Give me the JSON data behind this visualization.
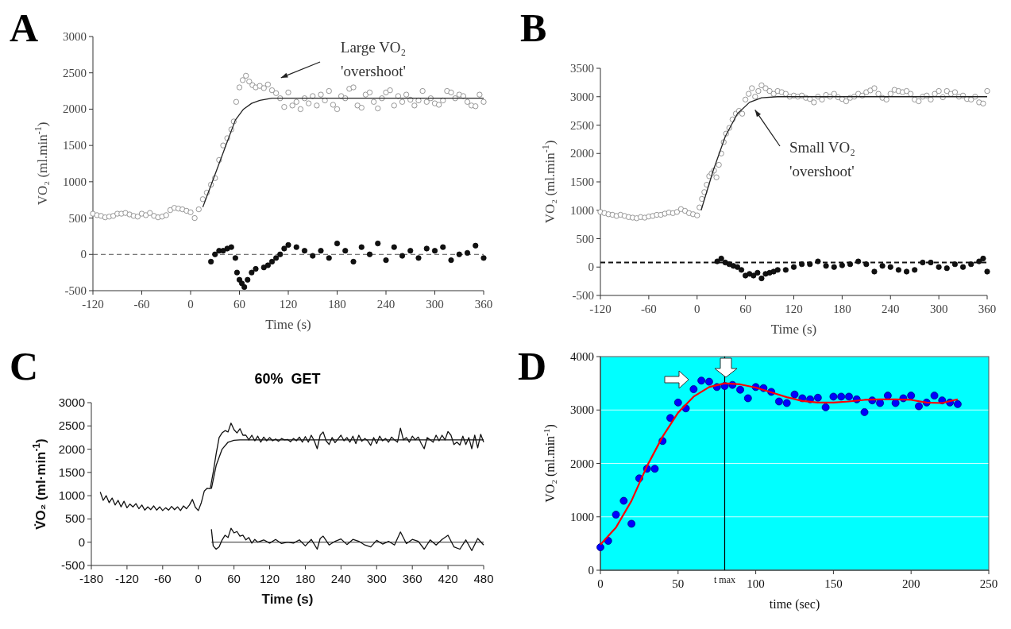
{
  "chart_data": [
    {
      "type": "scatter",
      "xlabel": "Time (s)",
      "ylabel": "VO₂ (ml.min$^{-1}$)",
      "xlim": [
        -120,
        360
      ],
      "xticks": [
        -120,
        -60,
        0,
        60,
        120,
        180,
        240,
        300,
        360
      ],
      "ylim": [
        -500,
        3000
      ],
      "yticks": [
        -500,
        0,
        500,
        1000,
        1500,
        2000,
        2500,
        3000
      ],
      "annotations": [
        "A",
        "Large VO₂\n'overshoot'"
      ],
      "ref_lines": [
        {
          "axis": "y",
          "value": 0,
          "line_style": "dashed",
          "color": "#555555"
        }
      ],
      "series": [
        {
          "type": "scatter",
          "marker": "circle",
          "color": "#ffffff",
          "x": [
            -120,
            -115,
            -110,
            -105,
            -100,
            -95,
            -90,
            -85,
            -80,
            -75,
            -70,
            -65,
            -60,
            -55,
            -50,
            -45,
            -40,
            -35,
            -30,
            -25,
            -20,
            -15,
            -10,
            -5,
            0,
            5,
            10,
            15,
            20,
            25,
            30,
            35,
            40,
            45,
            50,
            53,
            56,
            60,
            64,
            68,
            72,
            76,
            80,
            85,
            90,
            95,
            100,
            105,
            110,
            115,
            120,
            125,
            130,
            135,
            140,
            145,
            150,
            155,
            160,
            165,
            170,
            175,
            180,
            185,
            190,
            195,
            200,
            205,
            210,
            215,
            220,
            225,
            230,
            235,
            240,
            245,
            250,
            255,
            260,
            265,
            270,
            275,
            280,
            285,
            290,
            295,
            300,
            305,
            310,
            315,
            320,
            325,
            330,
            335,
            340,
            345,
            350,
            355,
            360
          ],
          "values": [
            560,
            540,
            530,
            510,
            520,
            530,
            560,
            560,
            570,
            550,
            530,
            520,
            560,
            540,
            570,
            530,
            510,
            520,
            540,
            610,
            640,
            630,
            620,
            600,
            580,
            500,
            620,
            760,
            850,
            960,
            1050,
            1300,
            1500,
            1600,
            1720,
            1830,
            2100,
            2300,
            2400,
            2460,
            2380,
            2330,
            2300,
            2320,
            2290,
            2340,
            2260,
            2220,
            2150,
            2030,
            2230,
            2050,
            2100,
            2000,
            2150,
            2080,
            2180,
            2050,
            2200,
            2120,
            2250,
            2060,
            2000,
            2180,
            2150,
            2280,
            2300,
            2050,
            2020,
            2200,
            2230,
            2100,
            2010,
            2150,
            2230,
            2260,
            2050,
            2180,
            2100,
            2200,
            2130,
            2050,
            2120,
            2250,
            2100,
            2150,
            2080,
            2060,
            2120,
            2250,
            2230,
            2150,
            2200,
            2180,
            2100,
            2050,
            2040,
            2200,
            2100
          ]
        },
        {
          "type": "line",
          "color": "#222222",
          "x": [
            15,
            30,
            45,
            55,
            65,
            75,
            85,
            100,
            360
          ],
          "values": [
            650,
            1100,
            1550,
            1850,
            2000,
            2080,
            2120,
            2150,
            2150
          ]
        },
        {
          "type": "scatter",
          "marker": "circle",
          "color": "#111111",
          "x": [
            25,
            30,
            35,
            40,
            45,
            50,
            55,
            57,
            60,
            63,
            66,
            70,
            75,
            80,
            90,
            95,
            100,
            105,
            110,
            115,
            120,
            130,
            140,
            150,
            160,
            170,
            180,
            190,
            200,
            210,
            220,
            230,
            240,
            250,
            260,
            270,
            280,
            290,
            300,
            310,
            320,
            330,
            340,
            350,
            360
          ],
          "values": [
            -100,
            0,
            50,
            50,
            80,
            100,
            -50,
            -250,
            -350,
            -400,
            -450,
            -350,
            -250,
            -200,
            -180,
            -150,
            -100,
            -50,
            0,
            80,
            130,
            100,
            50,
            -20,
            50,
            -50,
            150,
            50,
            -100,
            100,
            0,
            150,
            -80,
            100,
            -20,
            50,
            -50,
            80,
            50,
            100,
            -80,
            0,
            20,
            120,
            -50
          ]
        }
      ]
    },
    {
      "type": "scatter",
      "xlabel": "Time (s)",
      "ylabel": "VO₂ (ml.min$^{-1}$)",
      "xlim": [
        -120,
        360
      ],
      "xticks": [
        -120,
        -60,
        0,
        60,
        120,
        180,
        240,
        300,
        360
      ],
      "ylim": [
        -500,
        3500
      ],
      "yticks": [
        -500,
        0,
        500,
        1000,
        1500,
        2000,
        2500,
        3000,
        3500
      ],
      "annotations": [
        "B",
        "Small VO₂\n'overshoot'"
      ],
      "ref_lines": [
        {
          "axis": "y",
          "value": 80,
          "line_style": "dashed",
          "color": "#111111"
        }
      ],
      "series": [
        {
          "type": "scatter",
          "marker": "circle",
          "color": "#ffffff",
          "x": [
            -120,
            -115,
            -110,
            -105,
            -100,
            -95,
            -90,
            -85,
            -80,
            -75,
            -70,
            -65,
            -60,
            -55,
            -50,
            -45,
            -40,
            -35,
            -30,
            -25,
            -20,
            -15,
            -10,
            -5,
            0,
            3,
            6,
            9,
            12,
            15,
            18,
            21,
            24,
            27,
            30,
            33,
            36,
            40,
            44,
            48,
            52,
            56,
            60,
            64,
            68,
            72,
            76,
            80,
            85,
            90,
            95,
            100,
            105,
            110,
            115,
            120,
            125,
            130,
            135,
            140,
            145,
            150,
            155,
            160,
            165,
            170,
            175,
            180,
            185,
            190,
            195,
            200,
            205,
            210,
            215,
            220,
            225,
            230,
            235,
            240,
            245,
            250,
            255,
            260,
            265,
            270,
            275,
            280,
            285,
            290,
            295,
            300,
            305,
            310,
            315,
            320,
            325,
            330,
            335,
            340,
            345,
            350,
            355,
            360
          ],
          "values": [
            970,
            950,
            930,
            920,
            900,
            920,
            900,
            880,
            870,
            860,
            880,
            870,
            890,
            900,
            920,
            920,
            940,
            960,
            950,
            970,
            1020,
            990,
            950,
            930,
            910,
            1050,
            1200,
            1320,
            1450,
            1600,
            1650,
            1700,
            1580,
            1800,
            2000,
            2200,
            2350,
            2450,
            2600,
            2700,
            2750,
            2700,
            2950,
            3050,
            3150,
            3000,
            3100,
            3200,
            3150,
            3100,
            3050,
            3100,
            3080,
            3050,
            3000,
            3020,
            3000,
            3020,
            2980,
            2960,
            2900,
            3000,
            2950,
            3030,
            3000,
            3050,
            2990,
            2960,
            2920,
            2980,
            3000,
            3050,
            3020,
            3080,
            3110,
            3150,
            3050,
            2980,
            2950,
            3050,
            3120,
            3100,
            3080,
            3100,
            3050,
            2950,
            2920,
            3000,
            3020,
            2950,
            3050,
            3100,
            2990,
            3100,
            3050,
            3080,
            3000,
            3020,
            2960,
            2950,
            3000,
            2900,
            2880,
            3100
          ]
        },
        {
          "type": "line",
          "color": "#222222",
          "x": [
            5,
            20,
            35,
            50,
            65,
            80,
            100,
            360
          ],
          "values": [
            1000,
            1700,
            2300,
            2700,
            2900,
            2980,
            3000,
            3000
          ]
        },
        {
          "type": "scatter",
          "marker": "circle",
          "color": "#111111",
          "x": [
            25,
            30,
            35,
            40,
            45,
            50,
            55,
            60,
            65,
            70,
            75,
            80,
            85,
            90,
            95,
            100,
            110,
            120,
            130,
            140,
            150,
            160,
            170,
            180,
            190,
            200,
            210,
            220,
            230,
            240,
            250,
            260,
            270,
            280,
            290,
            300,
            310,
            320,
            330,
            340,
            350,
            355,
            360
          ],
          "values": [
            100,
            150,
            80,
            50,
            20,
            0,
            -50,
            -150,
            -120,
            -150,
            -100,
            -200,
            -120,
            -100,
            -80,
            -50,
            -50,
            0,
            50,
            50,
            100,
            20,
            0,
            30,
            50,
            100,
            50,
            -80,
            20,
            0,
            -50,
            -80,
            -50,
            80,
            80,
            0,
            -20,
            50,
            0,
            50,
            100,
            150,
            -80
          ]
        }
      ]
    },
    {
      "type": "line",
      "title": "60%  GET",
      "xlabel": "Time (s)",
      "ylabel": "V̇O₂ (ml·min$^{-1}$)",
      "xlim": [
        -180,
        480
      ],
      "xticks": [
        -180,
        -120,
        -60,
        0,
        60,
        120,
        180,
        240,
        300,
        360,
        420,
        480
      ],
      "ylim": [
        -500,
        3000
      ],
      "yticks": [
        -500,
        0,
        500,
        1000,
        1500,
        2000,
        2500,
        3000
      ],
      "annotations": [
        "C"
      ],
      "series": [
        {
          "color": "#111111",
          "x": [
            -165,
            -160,
            -155,
            -150,
            -145,
            -140,
            -135,
            -130,
            -125,
            -120,
            -115,
            -110,
            -105,
            -100,
            -95,
            -90,
            -85,
            -80,
            -75,
            -70,
            -65,
            -60,
            -55,
            -50,
            -45,
            -40,
            -35,
            -30,
            -25,
            -20,
            -15,
            -10,
            -5,
            0,
            5,
            10,
            15,
            20,
            25,
            30,
            35,
            40,
            45,
            50,
            55,
            60,
            65,
            70,
            75,
            80,
            85,
            90,
            95,
            100,
            105,
            110,
            115,
            120,
            125,
            130,
            135,
            140,
            145,
            150,
            155,
            160,
            165,
            170,
            175,
            180,
            185,
            190,
            195,
            200,
            205,
            210,
            215,
            220,
            225,
            230,
            240,
            245,
            250,
            255,
            260,
            265,
            270,
            275,
            280,
            285,
            290,
            295,
            300,
            305,
            310,
            315,
            320,
            325,
            330,
            335,
            340,
            345,
            350,
            355,
            360,
            365,
            370,
            375,
            380,
            385,
            390,
            395,
            400,
            405,
            410,
            415,
            420,
            425,
            430,
            435,
            440,
            445,
            450,
            455,
            460,
            465,
            470,
            475,
            480
          ],
          "values": [
            1080,
            900,
            1000,
            850,
            950,
            800,
            900,
            760,
            880,
            740,
            820,
            760,
            830,
            720,
            800,
            690,
            760,
            700,
            780,
            690,
            760,
            680,
            740,
            690,
            770,
            700,
            760,
            680,
            780,
            720,
            800,
            920,
            750,
            680,
            850,
            1100,
            1160,
            1150,
            1500,
            1900,
            2250,
            2350,
            2400,
            2370,
            2560,
            2420,
            2350,
            2440,
            2300,
            2300,
            2200,
            2300,
            2180,
            2280,
            2150,
            2260,
            2180,
            2250,
            2180,
            2220,
            2170,
            2230,
            2200,
            2210,
            2160,
            2230,
            2180,
            2260,
            2150,
            2270,
            2150,
            2300,
            2180,
            2010,
            2300,
            2370,
            2180,
            2100,
            2250,
            2140,
            2300,
            2180,
            2250,
            2150,
            2280,
            2120,
            2300,
            2170,
            2230,
            2180,
            2080,
            2250,
            2120,
            2280,
            2180,
            2230,
            2150,
            2260,
            2200,
            2150,
            2450,
            2200,
            2250,
            2150,
            2280,
            2200,
            2260,
            2120,
            2010,
            2250,
            2200,
            2150,
            2300,
            2180,
            2300,
            2200,
            2380,
            2300,
            2100,
            2150,
            2090,
            2280,
            2100,
            2250,
            2010,
            2300,
            2030,
            2320,
            2150
          ]
        },
        {
          "color": "#111111",
          "x": [
            22,
            30,
            40,
            50,
            60,
            70,
            480
          ],
          "values": [
            1150,
            1650,
            2000,
            2150,
            2190,
            2200,
            2200
          ]
        },
        {
          "color": "#555555",
          "x": [
            22,
            480
          ],
          "values": [
            0,
            0
          ]
        },
        {
          "color": "#111111",
          "x": [
            22,
            25,
            30,
            35,
            40,
            45,
            50,
            55,
            60,
            65,
            70,
            75,
            80,
            85,
            90,
            95,
            100,
            110,
            120,
            130,
            140,
            150,
            160,
            170,
            180,
            190,
            200,
            205,
            210,
            220,
            230,
            240,
            250,
            260,
            270,
            280,
            290,
            300,
            310,
            320,
            330,
            340,
            350,
            360,
            370,
            380,
            390,
            400,
            410,
            420,
            430,
            440,
            450,
            460,
            470,
            480
          ],
          "values": [
            280,
            -80,
            -150,
            -100,
            50,
            150,
            100,
            300,
            200,
            230,
            130,
            150,
            50,
            100,
            -20,
            60,
            0,
            50,
            -20,
            60,
            -30,
            0,
            -20,
            50,
            -80,
            60,
            -150,
            80,
            130,
            -60,
            20,
            70,
            -50,
            60,
            20,
            -60,
            -100,
            40,
            -40,
            20,
            -60,
            220,
            -30,
            60,
            20,
            -150,
            50,
            -60,
            60,
            150,
            -100,
            -150,
            50,
            -180,
            80,
            -60
          ]
        }
      ]
    },
    {
      "type": "scatter",
      "xlabel": "time (sec)",
      "ylabel": "VO₂ (ml.min$^{-1}$)",
      "xlim": [
        0,
        250
      ],
      "xticks": [
        0,
        50,
        100,
        150,
        200,
        250
      ],
      "ylim": [
        0,
        4000
      ],
      "yticks": [
        0,
        1000,
        2000,
        3000,
        4000
      ],
      "grid": "y",
      "annotations": [
        "D"
      ],
      "ref_lines": [
        {
          "axis": "x",
          "value": 80,
          "label": "t max",
          "color": "#000000",
          "line_style": "solid"
        }
      ],
      "series": [
        {
          "type": "scatter",
          "marker": "circle",
          "color": "#0000ff",
          "x": [
            0,
            5,
            10,
            15,
            20,
            25,
            30,
            35,
            40,
            45,
            50,
            55,
            60,
            65,
            70,
            75,
            80,
            85,
            90,
            95,
            100,
            105,
            110,
            115,
            120,
            125,
            130,
            135,
            140,
            145,
            150,
            155,
            160,
            165,
            170,
            175,
            180,
            185,
            190,
            195,
            200,
            205,
            210,
            215,
            220,
            225,
            230
          ],
          "values": [
            430,
            550,
            1040,
            1300,
            870,
            1720,
            1900,
            1900,
            2420,
            2850,
            3140,
            3030,
            3390,
            3550,
            3530,
            3430,
            3450,
            3470,
            3380,
            3220,
            3430,
            3410,
            3340,
            3160,
            3130,
            3290,
            3220,
            3200,
            3230,
            3050,
            3250,
            3250,
            3250,
            3200,
            2960,
            3180,
            3130,
            3270,
            3130,
            3220,
            3270,
            3070,
            3140,
            3270,
            3180,
            3140,
            3110
          ]
        },
        {
          "type": "line",
          "color": "#ff0000",
          "x": [
            0,
            10,
            20,
            30,
            40,
            50,
            60,
            70,
            80,
            90,
            100,
            110,
            120,
            130,
            140,
            150,
            160,
            170,
            180,
            190,
            200,
            210,
            220,
            230
          ],
          "values": [
            480,
            800,
            1300,
            1950,
            2500,
            2950,
            3250,
            3430,
            3500,
            3480,
            3420,
            3330,
            3240,
            3170,
            3140,
            3140,
            3160,
            3190,
            3200,
            3200,
            3190,
            3140,
            3130,
            3200
          ]
        }
      ]
    }
  ]
}
